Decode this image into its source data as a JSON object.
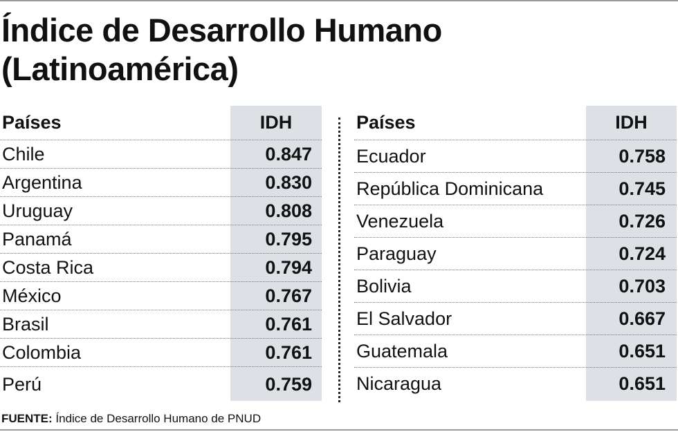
{
  "title": {
    "line1": "Índice de Desarrollo Humano",
    "line2": "(Latinoamérica)"
  },
  "left_table": {
    "header": {
      "country": "Países",
      "value": "IDH"
    },
    "rows": [
      {
        "country": "Chile",
        "value": "0.847"
      },
      {
        "country": "Argentina",
        "value": "0.830"
      },
      {
        "country": "Uruguay",
        "value": "0.808"
      },
      {
        "country": "Panamá",
        "value": "0.795"
      },
      {
        "country": "Costa Rica",
        "value": "0.794"
      },
      {
        "country": "México",
        "value": "0.767"
      },
      {
        "country": "Brasil",
        "value": "0.761"
      },
      {
        "country": "Colombia",
        "value": "0.761"
      },
      {
        "country": "Perú",
        "value": "0.759"
      }
    ]
  },
  "right_table": {
    "header": {
      "country": "Países",
      "value": "IDH"
    },
    "rows": [
      {
        "country": "Ecuador",
        "value": "0.758"
      },
      {
        "country": "República Dominicana",
        "value": "0.745"
      },
      {
        "country": "Venezuela",
        "value": "0.726"
      },
      {
        "country": "Paraguay",
        "value": "0.724"
      },
      {
        "country": "Bolivia",
        "value": "0.703"
      },
      {
        "country": "El Salvador",
        "value": "0.667"
      },
      {
        "country": "Guatemala",
        "value": "0.651"
      },
      {
        "country": "Nicaragua",
        "value": "0.651"
      }
    ]
  },
  "source": {
    "label": "FUENTE:",
    "text": " Índice de Desarrollo Humano de PNUD"
  },
  "colors": {
    "idh_column_bg": "#dde0e4",
    "text": "#111111",
    "rule": "#9a9a9a"
  }
}
